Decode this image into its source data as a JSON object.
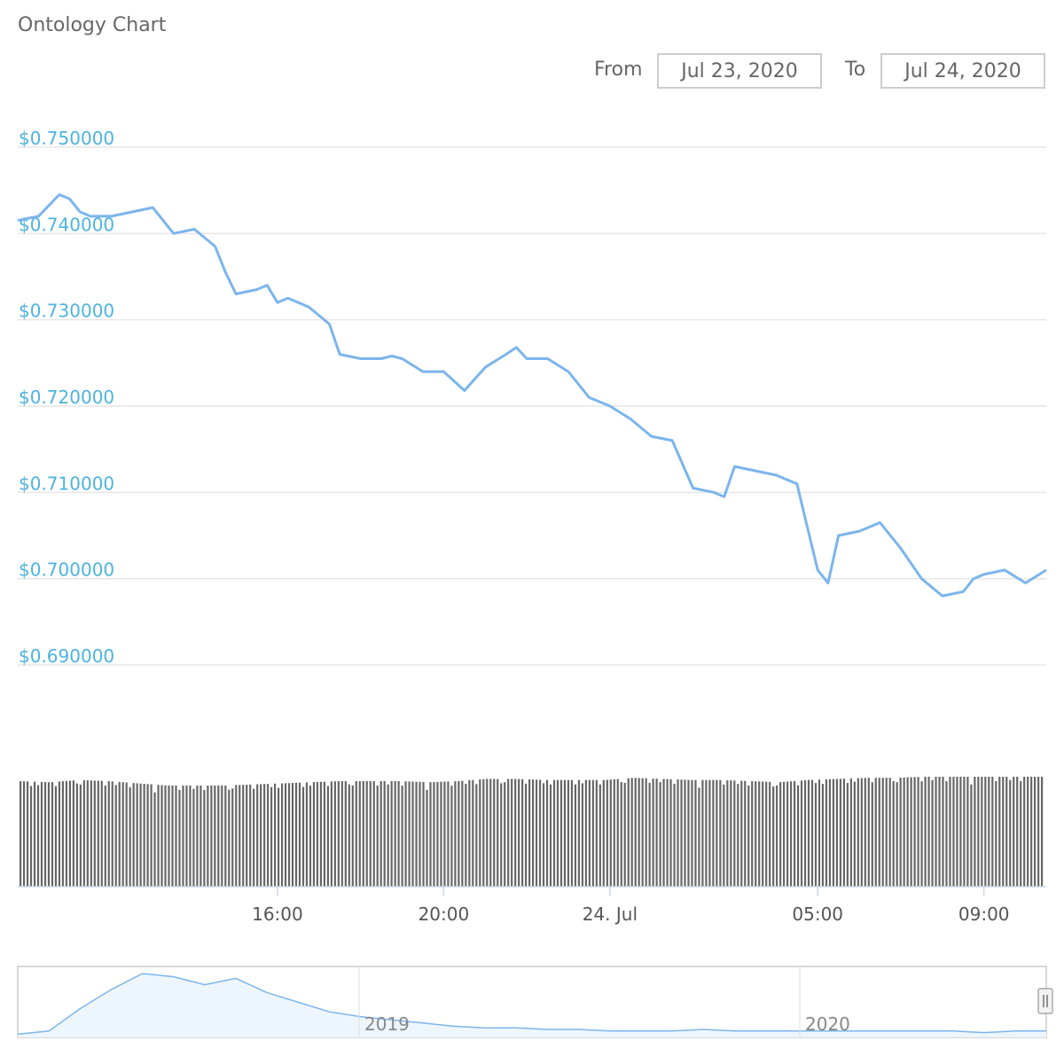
{
  "header": {
    "title": "Ontology Chart",
    "from_label": "From",
    "from_date": "Jul 23, 2020",
    "to_label": "To",
    "to_date": "Jul 24, 2020"
  },
  "colors": {
    "line": "#7cb5ec",
    "axis_label": "#4db3e0",
    "volume_bar": "#666666",
    "grid": "#e6e6e6"
  },
  "chart_data": {
    "type": "line",
    "title": "Ontology Chart",
    "ylabel": "",
    "xlabel": "",
    "ylim": [
      0.69,
      0.75
    ],
    "y_ticks": [
      "$0.750000",
      "$0.740000",
      "$0.730000",
      "$0.720000",
      "$0.710000",
      "$0.700000",
      "$0.690000"
    ],
    "y_tick_values": [
      0.75,
      0.74,
      0.73,
      0.72,
      0.71,
      0.7,
      0.69
    ],
    "x_ticks": [
      "16:00",
      "20:00",
      "24. Jul",
      "05:00",
      "09:00"
    ],
    "x_tick_hours": [
      16,
      20,
      24,
      29,
      33
    ],
    "x_range_hours": [
      9.75,
      34.5
    ],
    "grid": true,
    "series": [
      {
        "x": [
          9.75,
          10.25,
          10.75,
          11.0,
          11.25,
          11.5,
          12.0,
          12.5,
          13.0,
          13.5,
          14.0,
          14.5,
          14.75,
          15.0,
          15.5,
          15.75,
          16.0,
          16.25,
          16.75,
          17.25,
          17.5,
          18.0,
          18.5,
          18.75,
          19.0,
          19.5,
          20.0,
          20.5,
          21.0,
          21.5,
          21.75,
          22.0,
          22.5,
          23.0,
          23.5,
          24.0,
          24.5,
          25.0,
          25.5,
          26.0,
          26.5,
          26.75,
          27.0,
          27.5,
          28.0,
          28.5,
          28.75,
          29.0,
          29.25,
          29.5,
          30.0,
          30.5,
          31.0,
          31.5,
          32.0,
          32.5,
          32.75,
          33.0,
          33.5,
          34.0,
          34.5
        ],
        "values": [
          0.7415,
          0.742,
          0.7445,
          0.744,
          0.7425,
          0.742,
          0.742,
          0.7425,
          0.743,
          0.74,
          0.7405,
          0.7385,
          0.7355,
          0.733,
          0.7335,
          0.734,
          0.732,
          0.7325,
          0.7315,
          0.7295,
          0.726,
          0.7255,
          0.7255,
          0.7258,
          0.7255,
          0.724,
          0.724,
          0.7218,
          0.7245,
          0.726,
          0.7268,
          0.7255,
          0.7255,
          0.724,
          0.721,
          0.72,
          0.7185,
          0.7165,
          0.716,
          0.7105,
          0.71,
          0.7095,
          0.713,
          0.7125,
          0.712,
          0.711,
          0.706,
          0.701,
          0.6995,
          0.705,
          0.7055,
          0.7065,
          0.7035,
          0.7,
          0.698,
          0.6985,
          0.7,
          0.7005,
          0.701,
          0.6995,
          0.701
        ]
      }
    ],
    "volume": {
      "x_range_hours": [
        9.75,
        34.5
      ],
      "relative_heights": [
        0.96,
        0.95,
        0.97,
        0.96,
        0.94,
        0.92,
        0.92,
        0.92,
        0.93,
        0.94,
        0.95,
        0.96,
        0.96,
        0.96,
        0.95,
        0.96,
        0.98,
        0.98,
        0.97,
        0.97,
        0.97,
        0.99,
        0.98,
        0.97,
        0.97,
        0.96,
        0.95,
        0.97,
        0.98,
        0.99,
        0.99,
        1.0,
        1.0,
        1.0,
        1.0,
        1.0
      ]
    }
  },
  "navigator": {
    "tick_labels": [
      "2019",
      "2020"
    ],
    "values": [
      0.62,
      0.64,
      0.78,
      0.9,
      1.0,
      0.98,
      0.93,
      0.97,
      0.88,
      0.82,
      0.76,
      0.73,
      0.71,
      0.69,
      0.67,
      0.66,
      0.66,
      0.65,
      0.65,
      0.64,
      0.64,
      0.64,
      0.65,
      0.64,
      0.64,
      0.64,
      0.64,
      0.64,
      0.64,
      0.64,
      0.64,
      0.63,
      0.64,
      0.64
    ]
  }
}
